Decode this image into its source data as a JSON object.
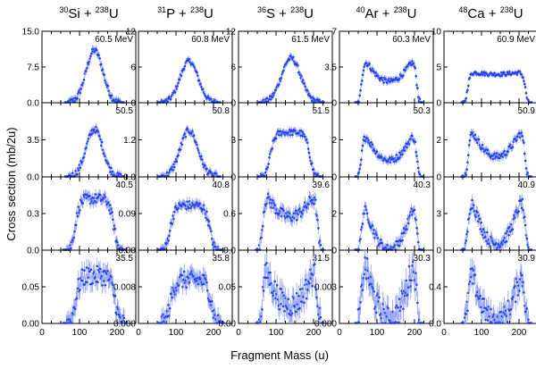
{
  "figure": {
    "ylabel": "Cross section (mb/2u)",
    "xlabel": "Fragment Mass (u)",
    "x_ticks": [
      "0",
      "100",
      "200"
    ],
    "columns": [
      {
        "proj_mass": "30",
        "proj": "Si",
        "plus": "+",
        "targ_mass": "238",
        "targ": "U"
      },
      {
        "proj_mass": "31",
        "proj": "P",
        "plus": "+",
        "targ_mass": "238",
        "targ": "U"
      },
      {
        "proj_mass": "36",
        "proj": "S",
        "plus": "+",
        "targ_mass": "238",
        "targ": "U"
      },
      {
        "proj_mass": "40",
        "proj": "Ar",
        "plus": "+",
        "targ_mass": "238",
        "targ": "U"
      },
      {
        "proj_mass": "48",
        "proj": "Ca",
        "plus": "+",
        "targ_mass": "238",
        "targ": "U"
      }
    ],
    "colors": {
      "data": "#1f3ff2",
      "axis": "#000000"
    }
  },
  "chart_data": [
    {
      "type": "scatter",
      "reaction": "30Si+238U",
      "energy_label": "60.5 MeV",
      "y_ticks": [
        "15.0",
        "7.5",
        "0.0"
      ],
      "ylim": [
        0,
        15
      ],
      "xlim": [
        0,
        250
      ],
      "shape": "single",
      "peak": 11,
      "floor": 0,
      "x_range": [
        70,
        210
      ]
    },
    {
      "type": "scatter",
      "reaction": "31P+238U",
      "energy_label": "60.8 MeV",
      "y_ticks": [
        "12",
        "6",
        "0"
      ],
      "ylim": [
        0,
        12
      ],
      "xlim": [
        0,
        250
      ],
      "shape": "single",
      "peak": 7,
      "floor": 0,
      "x_range": [
        60,
        210
      ]
    },
    {
      "type": "scatter",
      "reaction": "36S+238U",
      "energy_label": "61.5 MeV",
      "y_ticks": [
        "12",
        "6",
        "0"
      ],
      "ylim": [
        0,
        12
      ],
      "xlim": [
        0,
        250
      ],
      "shape": "single",
      "peak": 7.5,
      "floor": 0,
      "x_range": [
        60,
        220
      ]
    },
    {
      "type": "scatter",
      "reaction": "40Ar+238U",
      "energy_label": "60.3 MeV",
      "y_ticks": [
        "7",
        "3.5",
        "0"
      ],
      "ylim": [
        0,
        7
      ],
      "xlim": [
        0,
        250
      ],
      "shape": "double",
      "peak": 4.5,
      "floor": 2.1,
      "x_range": [
        50,
        215
      ]
    },
    {
      "type": "scatter",
      "reaction": "48Ca+238U",
      "energy_label": "60.9 MeV",
      "y_ticks": [
        "10",
        "5",
        "0"
      ],
      "ylim": [
        0,
        10
      ],
      "xlim": [
        0,
        250
      ],
      "shape": "flat",
      "peak": 4.5,
      "floor": 4.0,
      "x_range": [
        55,
        225
      ]
    },
    {
      "type": "scatter",
      "reaction": "30Si+238U",
      "energy_label": "50.5",
      "y_ticks": [
        "3.5",
        "0.0"
      ],
      "ylim": [
        0,
        7
      ],
      "xlim": [
        0,
        250
      ],
      "shape": "single",
      "peak": 4.5,
      "floor": 0,
      "x_range": [
        70,
        210
      ]
    },
    {
      "type": "scatter",
      "reaction": "31P+238U",
      "energy_label": "50.8",
      "y_ticks": [
        "1.2",
        "0.0"
      ],
      "ylim": [
        0,
        2.4
      ],
      "xlim": [
        0,
        250
      ],
      "shape": "single",
      "peak": 1.5,
      "floor": 0,
      "x_range": [
        60,
        210
      ]
    },
    {
      "type": "scatter",
      "reaction": "36S+238U",
      "energy_label": "51.5",
      "y_ticks": [
        "3",
        "0"
      ],
      "ylim": [
        0,
        6
      ],
      "xlim": [
        0,
        250
      ],
      "shape": "flattop",
      "peak": 3.6,
      "floor": 0,
      "x_range": [
        60,
        215
      ]
    },
    {
      "type": "scatter",
      "reaction": "40Ar+238U",
      "energy_label": "50.3",
      "y_ticks": [
        "2",
        "0"
      ],
      "ylim": [
        0,
        4
      ],
      "xlim": [
        0,
        250
      ],
      "shape": "double",
      "peak": 2.5,
      "floor": 0.9,
      "x_range": [
        50,
        215
      ]
    },
    {
      "type": "scatter",
      "reaction": "48Ca+238U",
      "energy_label": "50.9",
      "y_ticks": [
        "2",
        "0"
      ],
      "ylim": [
        0,
        4
      ],
      "xlim": [
        0,
        250
      ],
      "shape": "double",
      "peak": 2.7,
      "floor": 1.1,
      "x_range": [
        55,
        225
      ]
    },
    {
      "type": "scatter",
      "reaction": "30Si+238U",
      "energy_label": "40.5",
      "y_ticks": [
        "0.3",
        "0.0"
      ],
      "ylim": [
        0,
        0.6
      ],
      "xlim": [
        0,
        250
      ],
      "shape": "flattop",
      "peak": 0.42,
      "floor": 0,
      "x_range": [
        65,
        215
      ]
    },
    {
      "type": "scatter",
      "reaction": "31P+238U",
      "energy_label": "40.8",
      "y_ticks": [
        "0.09",
        "0.00"
      ],
      "ylim": [
        0,
        0.18
      ],
      "xlim": [
        0,
        250
      ],
      "shape": "flattop",
      "peak": 0.11,
      "floor": 0,
      "x_range": [
        60,
        215
      ]
    },
    {
      "type": "scatter",
      "reaction": "36S+238U",
      "energy_label": "39.6",
      "y_ticks": [
        "0.6",
        "0.0"
      ],
      "ylim": [
        0,
        1.2
      ],
      "xlim": [
        0,
        250
      ],
      "shape": "double",
      "peak": 0.95,
      "floor": 0.55,
      "x_range": [
        55,
        220
      ]
    },
    {
      "type": "scatter",
      "reaction": "40Ar+238U",
      "energy_label": "40.3",
      "y_ticks": [
        "2",
        "0"
      ],
      "ylim": [
        0,
        4
      ],
      "xlim": [
        0,
        250
      ],
      "shape": "double",
      "peak": 2.6,
      "floor": 0.05,
      "x_range": [
        50,
        215
      ]
    },
    {
      "type": "scatter",
      "reaction": "48Ca+238U",
      "energy_label": "40.9",
      "y_ticks": [
        "3",
        "0"
      ],
      "ylim": [
        0,
        6
      ],
      "xlim": [
        0,
        250
      ],
      "shape": "double",
      "peak": 4.6,
      "floor": 0.5,
      "x_range": [
        55,
        225
      ]
    },
    {
      "type": "scatter",
      "reaction": "30Si+238U",
      "energy_label": "35.5",
      "y_ticks": [
        "0.05",
        "0.00"
      ],
      "ylim": [
        0,
        0.1
      ],
      "xlim": [
        0,
        250
      ],
      "shape": "flattop",
      "peak": 0.065,
      "floor": 0,
      "x_range": [
        65,
        220
      ]
    },
    {
      "type": "scatter",
      "reaction": "31P+238U",
      "energy_label": "35.8",
      "y_ticks": [
        "0.008",
        "0.000"
      ],
      "ylim": [
        0,
        0.016
      ],
      "xlim": [
        0,
        250
      ],
      "shape": "flattop",
      "peak": 0.0095,
      "floor": 0,
      "x_range": [
        60,
        220
      ]
    },
    {
      "type": "scatter",
      "reaction": "36S+238U",
      "energy_label": "31.5",
      "y_ticks": [
        "0.05",
        "0.00"
      ],
      "ylim": [
        0,
        0.1
      ],
      "xlim": [
        0,
        250
      ],
      "shape": "double",
      "peak": 0.08,
      "floor": 0.025,
      "x_range": [
        55,
        220
      ]
    },
    {
      "type": "scatter",
      "reaction": "40Ar+238U",
      "energy_label": "30.3",
      "y_ticks": [
        "0.003",
        "0.000"
      ],
      "ylim": [
        0,
        0.006
      ],
      "xlim": [
        0,
        250
      ],
      "shape": "double",
      "peak": 0.0055,
      "floor": 0.0003,
      "x_range": [
        50,
        215
      ]
    },
    {
      "type": "scatter",
      "reaction": "48Ca+238U",
      "energy_label": "30.9",
      "y_ticks": [
        "0.4",
        "0.0"
      ],
      "ylim": [
        0,
        0.8
      ],
      "xlim": [
        0,
        250
      ],
      "shape": "double",
      "peak": 0.6,
      "floor": 0.02,
      "x_range": [
        55,
        225
      ]
    }
  ]
}
